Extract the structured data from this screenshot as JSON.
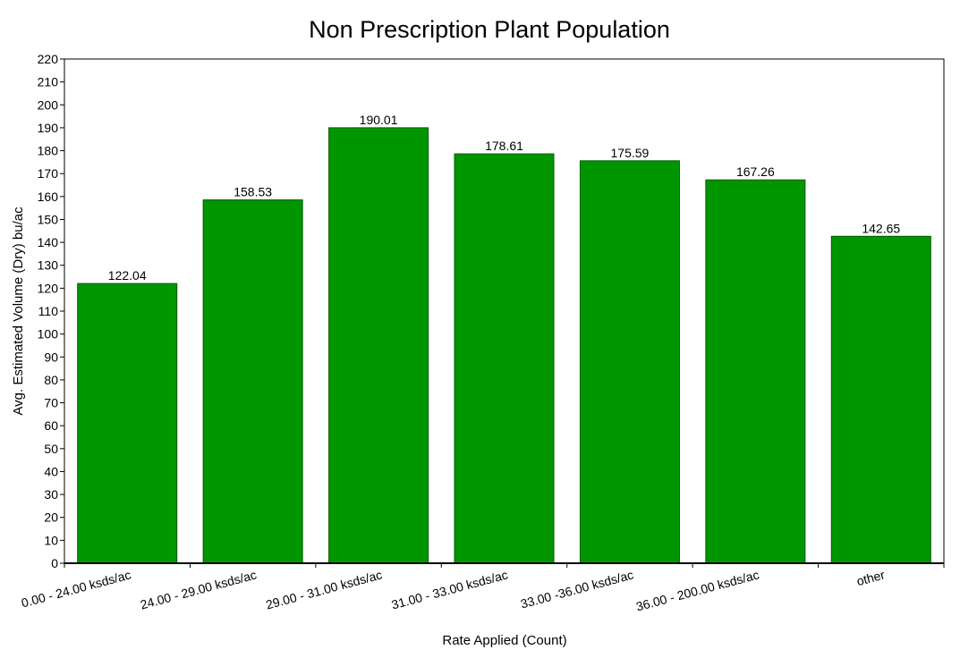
{
  "chart_data": {
    "type": "bar",
    "title": "Non Prescription Plant Population",
    "xlabel": "Rate Applied (Count)",
    "ylabel": "Avg. Estimated Volume (Dry) bu/ac",
    "categories": [
      "0.00 - 24.00 ksds/ac",
      "24.00 - 29.00 ksds/ac",
      "29.00 - 31.00 ksds/ac",
      "31.00 - 33.00 ksds/ac",
      "33.00 -36.00 ksds/ac",
      "36.00 - 200.00 ksds/ac",
      "other"
    ],
    "values": [
      122.04,
      158.53,
      190.01,
      178.61,
      175.59,
      167.26,
      142.65
    ],
    "data_labels": [
      "122.04",
      "158.53",
      "190.01",
      "178.61",
      "175.59",
      "167.26",
      "142.65"
    ],
    "ylim": [
      0,
      220
    ],
    "ytick_step": 10,
    "grid": false,
    "legend": false,
    "bar_color": "#009600",
    "bar_edge_color": "#005a00"
  }
}
